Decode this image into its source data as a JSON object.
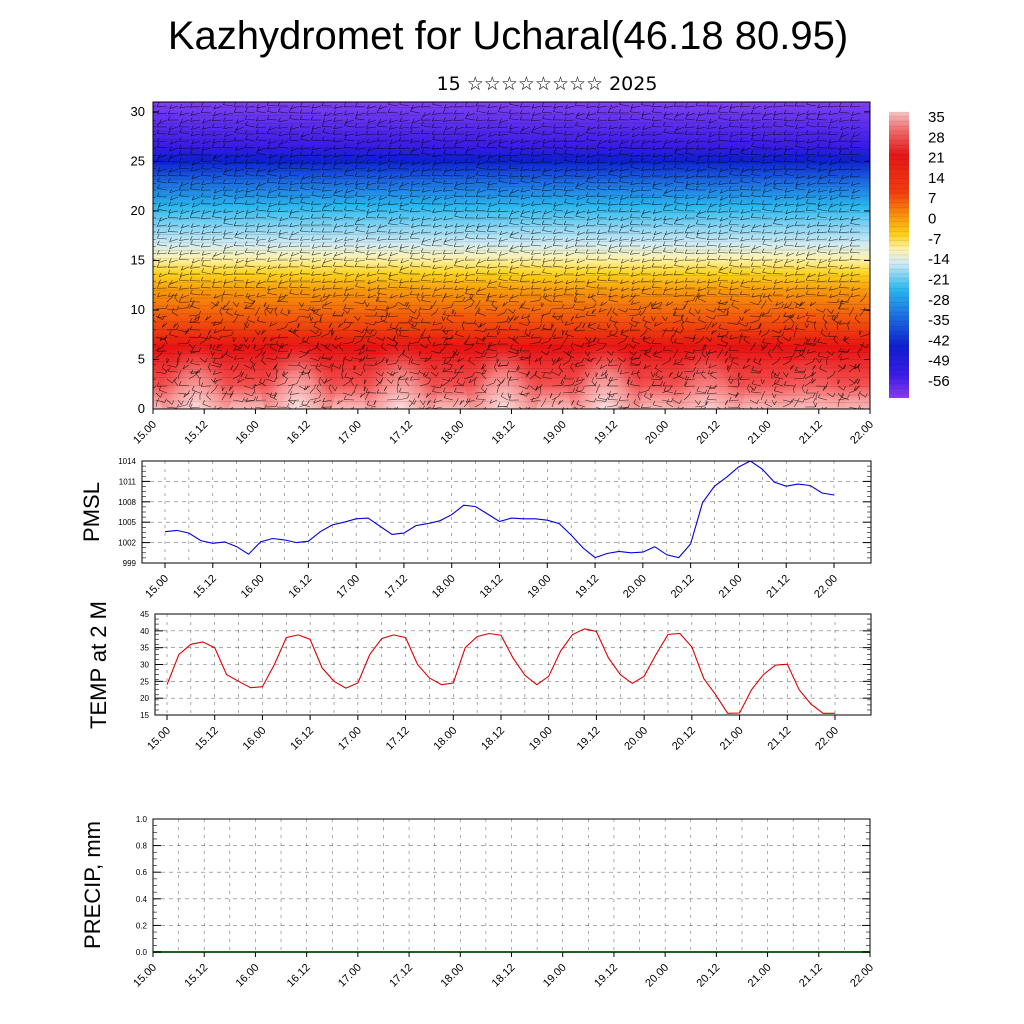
{
  "header": {
    "title": "Kazhydromet for Ucharal(46.18 80.95)",
    "subtitle": "15 ☆☆☆☆☆☆☆☆ 2025"
  },
  "colors": {
    "pmsl_line": "#0000dd",
    "temp_line": "#dd0000",
    "precip_line": "#1f5f1f",
    "colorbar_top": "#f2b3b3",
    "colorbar_bottom": "#8000ff"
  },
  "chart_data": [
    {
      "type": "heatmap",
      "name": "upper-air-temperature-wind",
      "x_ticks": [
        "15.00",
        "15.12",
        "16.00",
        "16.12",
        "17.00",
        "17.12",
        "18.00",
        "18.12",
        "19.00",
        "19.12",
        "20.00",
        "20.12",
        "21.00",
        "21.12",
        "22.00"
      ],
      "y_ticks": [
        "0",
        "5",
        "10",
        "15",
        "20",
        "25",
        "30"
      ],
      "ylim": [
        0,
        31
      ],
      "colorbar_labels": [
        "35",
        "28",
        "21",
        "14",
        "7",
        "0",
        "-7",
        "-14",
        "-21",
        "-28",
        "-35",
        "-42",
        "-49",
        "-56"
      ],
      "wind_barbs": true
    },
    {
      "type": "line",
      "name": "pmsl",
      "ylabel": "PMSL",
      "x_ticks": [
        "15.00",
        "15.12",
        "16.00",
        "16.12",
        "17.00",
        "17.12",
        "18.00",
        "18.12",
        "19.00",
        "19.12",
        "20.00",
        "20.12",
        "21.00",
        "21.12",
        "22.00"
      ],
      "y_ticks": [
        "1014",
        "1011",
        "1008",
        "1005",
        "1002",
        "999"
      ],
      "ylim": [
        999,
        1014
      ],
      "grid": true,
      "x": [
        0,
        3,
        6,
        9,
        12,
        15,
        18,
        21,
        24,
        27,
        30,
        33,
        36,
        39,
        42,
        45,
        48,
        51,
        54,
        57,
        60,
        63,
        66,
        69,
        72,
        75,
        78,
        81,
        84,
        87,
        90,
        93,
        96,
        99,
        102,
        105,
        108,
        111,
        114,
        117,
        120,
        123,
        126,
        129,
        132,
        135,
        138,
        141,
        144,
        147,
        150,
        153,
        156,
        159,
        162,
        165,
        168
      ],
      "values": [
        1003.6,
        1003.8,
        1003.4,
        1002.3,
        1001.9,
        1002.1,
        1001.4,
        1000.3,
        1002.1,
        1002.6,
        1002.4,
        1002.0,
        1002.2,
        1003.6,
        1004.6,
        1005.0,
        1005.5,
        1005.6,
        1004.4,
        1003.2,
        1003.4,
        1004.5,
        1004.8,
        1005.2,
        1006.1,
        1007.5,
        1007.3,
        1006.2,
        1005.1,
        1005.6,
        1005.5,
        1005.5,
        1005.3,
        1004.8,
        1003.1,
        1001.2,
        999.8,
        1000.4,
        1000.7,
        1000.5,
        1000.6,
        1001.4,
        1000.2,
        999.8,
        1001.8,
        1007.9,
        1010.3,
        1011.6,
        1013.1,
        1014.0,
        1012.8,
        1010.9,
        1010.3,
        1010.6,
        1010.4,
        1009.3,
        1009.0
      ]
    },
    {
      "type": "line",
      "name": "temp-2m",
      "ylabel": "TEMP at 2 M",
      "x_ticks": [
        "15.00",
        "15.12",
        "16.00",
        "16.12",
        "17.00",
        "17.12",
        "18.00",
        "18.12",
        "19.00",
        "19.12",
        "20.00",
        "20.12",
        "21.00",
        "21.12",
        "22.00"
      ],
      "y_ticks": [
        "45",
        "40",
        "35",
        "30",
        "25",
        "20",
        "15"
      ],
      "ylim": [
        15,
        45
      ],
      "grid": true,
      "x": [
        0,
        3,
        6,
        9,
        12,
        15,
        18,
        21,
        24,
        27,
        30,
        33,
        36,
        39,
        42,
        45,
        48,
        51,
        54,
        57,
        60,
        63,
        66,
        69,
        72,
        75,
        78,
        81,
        84,
        87,
        90,
        93,
        96,
        99,
        102,
        105,
        108,
        111,
        114,
        117,
        120,
        123,
        126,
        129,
        132,
        135,
        138,
        141,
        144,
        147,
        150,
        153,
        156,
        159,
        162,
        165,
        168
      ],
      "values": [
        24,
        33,
        36,
        36.7,
        35,
        27,
        25,
        23.1,
        23.4,
        30,
        38,
        38.8,
        37.5,
        29,
        25,
        23,
        24.5,
        33,
        37.7,
        38.8,
        38,
        30,
        26,
        24,
        24.5,
        35,
        38.3,
        39.2,
        38.7,
        32,
        26.8,
        24,
        26.5,
        34,
        38.9,
        40.6,
        39.8,
        32,
        27,
        24.4,
        26.5,
        33,
        38.9,
        39.2,
        35.2,
        25.8,
        21,
        15.5,
        15.6,
        22.5,
        27,
        29.8,
        30.1,
        22.5,
        18.2,
        15.5,
        15.5
      ]
    },
    {
      "type": "line",
      "name": "precip",
      "ylabel": "PRECIP, mm",
      "x_ticks": [
        "15.00",
        "15.12",
        "16.00",
        "16.12",
        "17.00",
        "17.12",
        "18.00",
        "18.12",
        "19.00",
        "19.12",
        "20.00",
        "20.12",
        "21.00",
        "21.12",
        "22.00"
      ],
      "y_ticks": [
        "1.0",
        "0.8",
        "0.6",
        "0.4",
        "0.2",
        "0.0"
      ],
      "ylim": [
        0,
        1
      ],
      "grid": true,
      "x": [
        0,
        168
      ],
      "values": [
        0,
        0
      ]
    }
  ]
}
